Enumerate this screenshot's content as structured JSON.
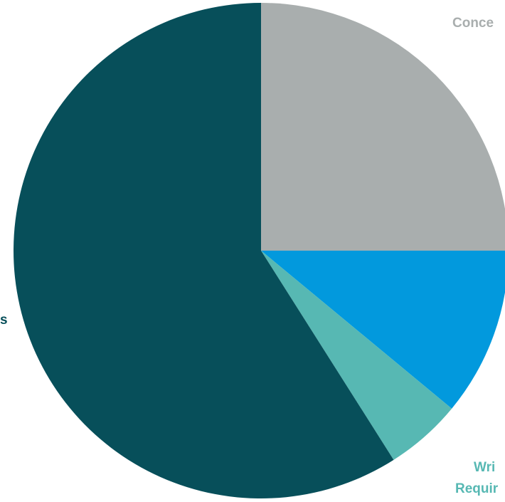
{
  "chart_data": {
    "type": "pie",
    "slices": [
      {
        "label": "Conce",
        "value": 25,
        "color": "#a9aeae"
      },
      {
        "label": "",
        "value": 11,
        "color": "#0299dd"
      },
      {
        "label": "Wri Requir",
        "value": 5,
        "color": "#57b8b3"
      },
      {
        "label": "s",
        "value": 59,
        "color": "#074f5a"
      }
    ],
    "legend": "none"
  }
}
